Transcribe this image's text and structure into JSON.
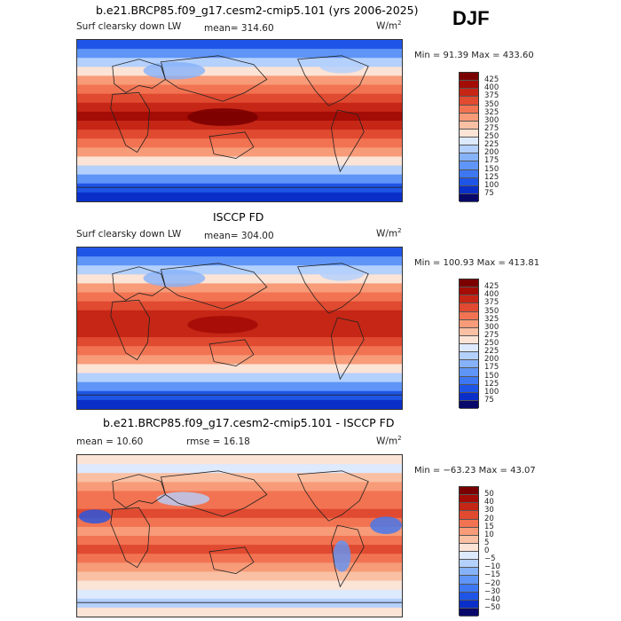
{
  "header": {
    "title": "b.e21.BRCP85.f09_g17.cesm2-cmip5.101 (yrs 2006-2025)",
    "season": "DJF"
  },
  "panels": [
    {
      "id": "model",
      "title": "",
      "variable": "Surf clearsky down LW",
      "mean_label": "mean= 314.60",
      "units": "W/m",
      "units_sup": "2",
      "minmax": "Min =  91.39 Max = 433.60",
      "colorbar_labels": [
        "425",
        "400",
        "375",
        "350",
        "325",
        "300",
        "275",
        "250",
        "225",
        "200",
        "175",
        "150",
        "125",
        "100",
        "75"
      ]
    },
    {
      "id": "obs",
      "title": "ISCCP FD",
      "variable": "Surf clearsky down LW",
      "mean_label": "mean= 304.00",
      "units": "W/m",
      "units_sup": "2",
      "minmax": "Min = 100.93 Max = 413.81",
      "colorbar_labels": [
        "425",
        "400",
        "375",
        "350",
        "325",
        "300",
        "275",
        "250",
        "225",
        "200",
        "175",
        "150",
        "125",
        "100",
        "75"
      ]
    },
    {
      "id": "diff",
      "title": "b.e21.BRCP85.f09_g17.cesm2-cmip5.101 - ISCCP FD",
      "mean_label": "mean =  10.60",
      "rmse_label": "rmse =  16.18",
      "units": "W/m",
      "units_sup": "2",
      "minmax": "Min = −63.23 Max =  43.07",
      "colorbar_labels": [
        "50",
        "40",
        "30",
        "20",
        "15",
        "10",
        "5",
        "0",
        "−5",
        "−10",
        "−15",
        "−20",
        "−30",
        "−40",
        "−50"
      ]
    }
  ],
  "chart_data": [
    {
      "type": "heatmap",
      "title": "b.e21.BRCP85.f09_g17.cesm2-cmip5.101 (yrs 2006-2025)",
      "variable": "Surf clearsky down LW",
      "units": "W/m2",
      "mean": 314.6,
      "min": 91.39,
      "max": 433.6,
      "levels": [
        75,
        100,
        125,
        150,
        175,
        200,
        225,
        250,
        275,
        300,
        325,
        350,
        375,
        400,
        425
      ],
      "colorbar_colors": [
        "#08086b",
        "#0a2fc9",
        "#1f55e6",
        "#3d77f2",
        "#5f95f7",
        "#86b2fa",
        "#b4d0fc",
        "#dde9fd",
        "#fbe3d6",
        "#f9c0a3",
        "#f79b78",
        "#f27352",
        "#e04a30",
        "#c52615",
        "#a40c06",
        "#7a0000"
      ],
      "description_fields": "latitude-longitude global map, warm tropics, cold poles"
    },
    {
      "type": "heatmap",
      "title": "ISCCP FD",
      "variable": "Surf clearsky down LW",
      "units": "W/m2",
      "mean": 304.0,
      "min": 100.93,
      "max": 413.81,
      "levels": [
        75,
        100,
        125,
        150,
        175,
        200,
        225,
        250,
        275,
        300,
        325,
        350,
        375,
        400,
        425
      ],
      "colorbar_colors": [
        "#08086b",
        "#0a2fc9",
        "#1f55e6",
        "#3d77f2",
        "#5f95f7",
        "#86b2fa",
        "#b4d0fc",
        "#dde9fd",
        "#fbe3d6",
        "#f9c0a3",
        "#f79b78",
        "#f27352",
        "#e04a30",
        "#c52615",
        "#a40c06",
        "#7a0000"
      ]
    },
    {
      "type": "heatmap",
      "title": "b.e21.BRCP85.f09_g17.cesm2-cmip5.101 - ISCCP FD",
      "units": "W/m2",
      "mean": 10.6,
      "rmse": 16.18,
      "min": -63.23,
      "max": 43.07,
      "levels": [
        -50,
        -40,
        -30,
        -20,
        -15,
        -10,
        -5,
        0,
        5,
        10,
        15,
        20,
        30,
        40,
        50
      ],
      "colorbar_colors": [
        "#08086b",
        "#0a2fc9",
        "#1f55e6",
        "#3d77f2",
        "#5f95f7",
        "#86b2fa",
        "#b4d0fc",
        "#dde9fd",
        "#fbe3d6",
        "#f9c0a3",
        "#f79b78",
        "#f27352",
        "#e04a30",
        "#c52615",
        "#a40c06",
        "#7a0000"
      ]
    }
  ]
}
